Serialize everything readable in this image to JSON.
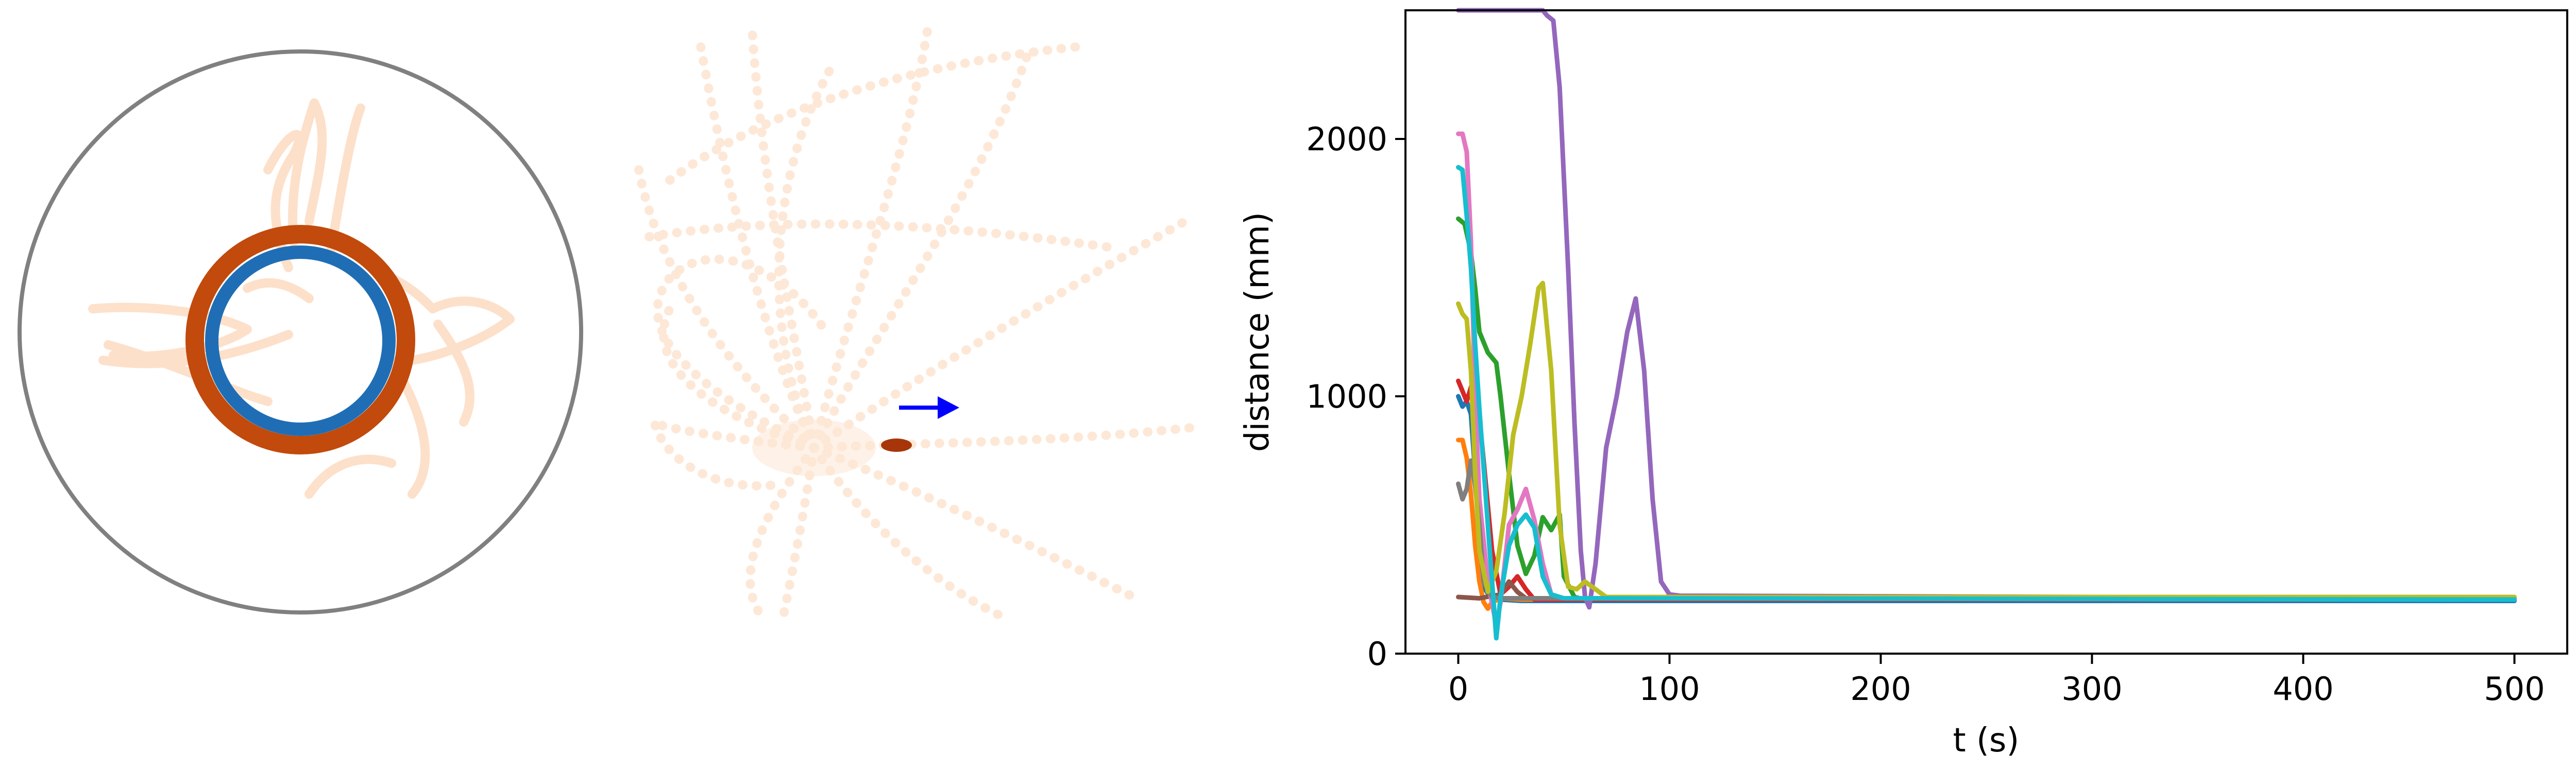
{
  "chart_data": [
    {
      "type": "trajectory",
      "panel": "arena",
      "boundary_color": "#808080",
      "trail_color": "#fdd9bd",
      "outer_ring_color": "#c14a0c",
      "inner_ring_color": "#1f6eb5"
    },
    {
      "type": "trajectory",
      "panel": "paths",
      "trail_color": "#fde6d3",
      "arrow_color": "#0000ff",
      "marker_color": "#a6360a"
    },
    {
      "type": "line",
      "xlabel": "t (s)",
      "ylabel": "distance (mm)",
      "xlim": [
        -25,
        525
      ],
      "ylim": [
        0,
        2500
      ],
      "xticks": [
        0,
        100,
        200,
        300,
        400,
        500
      ],
      "yticks": [
        0,
        1000,
        2000
      ],
      "grid": false,
      "series": [
        {
          "color": "#1f77b4",
          "x": [
            0,
            2,
            4,
            6,
            8,
            10,
            12,
            15,
            20,
            30,
            500
          ],
          "y": [
            1000,
            960,
            980,
            930,
            700,
            400,
            260,
            220,
            210,
            205,
            205
          ]
        },
        {
          "color": "#ff7f0e",
          "x": [
            0,
            2,
            4,
            6,
            8,
            10,
            12,
            14,
            16,
            20,
            30,
            500
          ],
          "y": [
            830,
            830,
            760,
            620,
            420,
            280,
            200,
            175,
            200,
            215,
            210,
            210
          ]
        },
        {
          "color": "#2ca02c",
          "x": [
            0,
            3,
            6,
            8,
            10,
            14,
            18,
            20,
            24,
            28,
            32,
            36,
            40,
            44,
            48,
            50,
            55,
            60,
            500
          ],
          "y": [
            1690,
            1670,
            1560,
            1420,
            1250,
            1170,
            1130,
            1000,
            700,
            420,
            310,
            380,
            530,
            480,
            540,
            300,
            220,
            210,
            210
          ]
        },
        {
          "color": "#d62728",
          "x": [
            0,
            4,
            8,
            12,
            16,
            20,
            24,
            28,
            32,
            36,
            40,
            500
          ],
          "y": [
            1060,
            980,
            1090,
            750,
            400,
            230,
            260,
            300,
            250,
            210,
            210,
            210
          ]
        },
        {
          "color": "#9467bd",
          "x": [
            0,
            40,
            42,
            45,
            48,
            52,
            55,
            58,
            60,
            62,
            65,
            70,
            75,
            80,
            84,
            88,
            92,
            96,
            100,
            105,
            500
          ],
          "y": [
            2500,
            2500,
            2480,
            2460,
            2200,
            1500,
            900,
            400,
            220,
            180,
            350,
            800,
            1000,
            1250,
            1380,
            1100,
            600,
            280,
            230,
            225,
            215
          ]
        },
        {
          "color": "#8c564b",
          "x": [
            0,
            10,
            20,
            24,
            28,
            32,
            500
          ],
          "y": [
            220,
            215,
            230,
            280,
            240,
            215,
            210
          ]
        },
        {
          "color": "#e377c2",
          "x": [
            0,
            2,
            4,
            6,
            8,
            10,
            14,
            18,
            20,
            24,
            28,
            32,
            36,
            40,
            44,
            50,
            500
          ],
          "y": [
            2020,
            2020,
            1950,
            1600,
            1000,
            600,
            280,
            110,
            200,
            500,
            560,
            640,
            520,
            350,
            230,
            215,
            215
          ]
        },
        {
          "color": "#7f7f7f",
          "x": [
            0,
            2,
            4,
            6,
            8,
            10,
            12,
            16,
            20,
            500
          ],
          "y": [
            660,
            600,
            640,
            750,
            650,
            500,
            280,
            220,
            215,
            210
          ]
        },
        {
          "color": "#bcbd22",
          "x": [
            0,
            2,
            4,
            6,
            8,
            10,
            14,
            18,
            22,
            26,
            30,
            34,
            38,
            40,
            44,
            48,
            52,
            56,
            60,
            70,
            500
          ],
          "y": [
            1360,
            1320,
            1300,
            1100,
            700,
            400,
            240,
            320,
            550,
            850,
            1000,
            1200,
            1420,
            1440,
            1100,
            500,
            260,
            250,
            280,
            220,
            220
          ]
        },
        {
          "color": "#17becf",
          "x": [
            0,
            2,
            4,
            6,
            8,
            10,
            14,
            18,
            20,
            24,
            28,
            32,
            36,
            40,
            44,
            50,
            500
          ],
          "y": [
            1890,
            1880,
            1700,
            1500,
            1200,
            950,
            500,
            60,
            220,
            420,
            500,
            540,
            490,
            300,
            230,
            215,
            210
          ]
        }
      ]
    }
  ]
}
